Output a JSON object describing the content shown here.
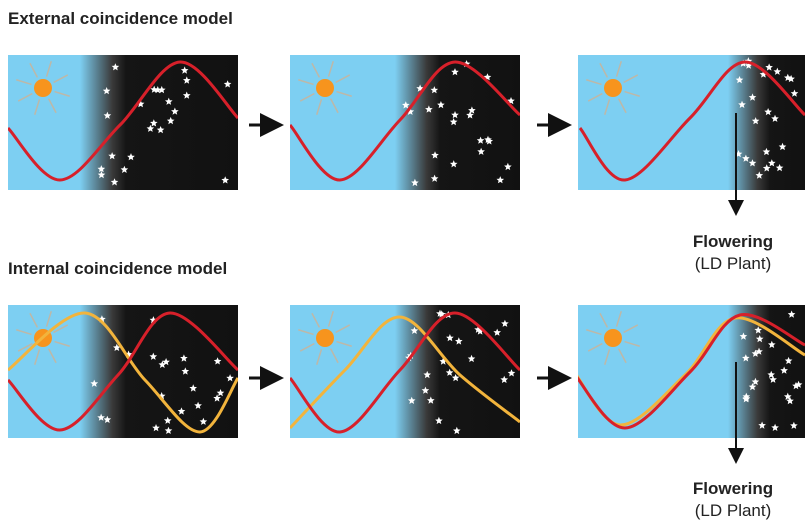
{
  "external": {
    "title": "External coincidence model",
    "outcome": "Flowering",
    "outcome_note": "(LD Plant)"
  },
  "internal": {
    "title": "Internal coincidence model",
    "outcome": "Flowering",
    "outcome_note": "(LD Plant)"
  }
}
